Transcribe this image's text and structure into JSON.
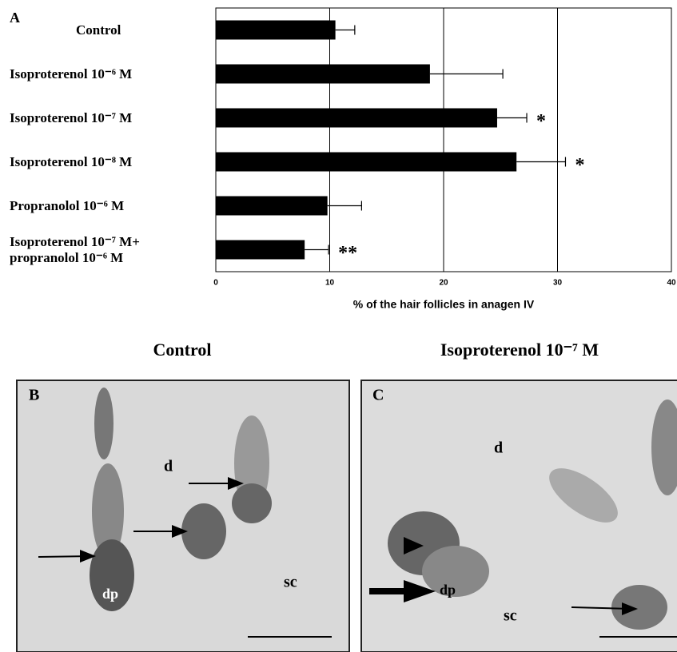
{
  "chart_data": {
    "type": "hbar",
    "panel_label": "A",
    "categories": [
      "Control",
      "Isoproterenol  10⁻⁶ M",
      "Isoproterenol  10⁻⁷ M",
      "Isoproterenol  10⁻⁸ M",
      "Propranolol 10⁻⁶ M",
      "Isoproterenol  10⁻⁷ M+\npropranolol  10⁻⁶ M"
    ],
    "values": [
      10.5,
      18.8,
      24.7,
      26.4,
      9.8,
      7.8
    ],
    "errors": [
      1.7,
      6.4,
      2.6,
      4.3,
      3.0,
      2.1
    ],
    "significance": [
      null,
      null,
      "*",
      "*",
      null,
      "**"
    ],
    "color": "#000000",
    "xlabel": "% of the hair follicles in anagen IV",
    "xlim": [
      0,
      40
    ],
    "xticks": [
      0,
      10,
      20,
      30,
      40
    ],
    "grid": true
  },
  "panels": [
    {
      "title": "Control",
      "label": "B",
      "labels": [
        "d",
        "sc",
        "dp"
      ]
    },
    {
      "title": "Isoproterenol 10⁻⁷ M",
      "label": "C",
      "labels": [
        "d",
        "sc",
        "dp"
      ]
    }
  ]
}
